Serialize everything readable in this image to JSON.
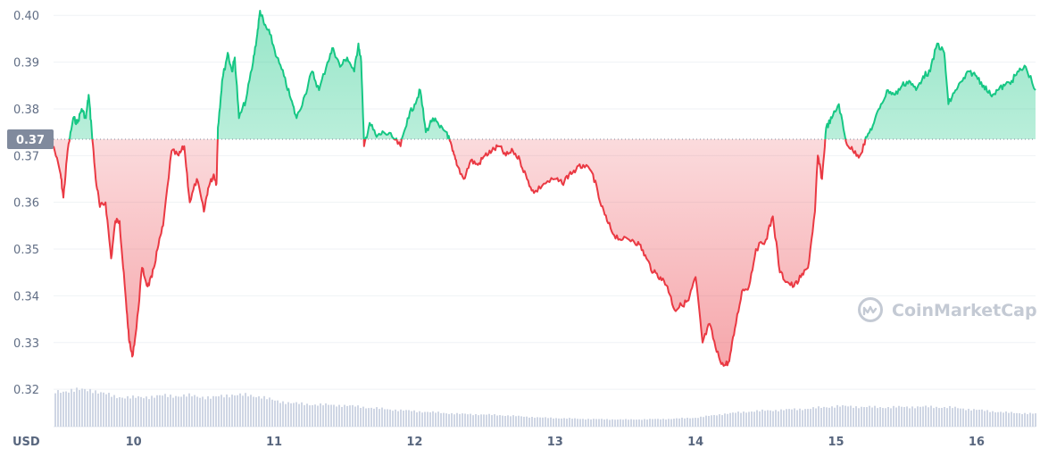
{
  "chart_data": {
    "type": "area",
    "unit_label": "USD",
    "reference_value": 0.3735,
    "reference_label": "0.37",
    "ylim": [
      0.312,
      0.401
    ],
    "y_ticks": [
      0.32,
      0.33,
      0.34,
      0.35,
      0.36,
      0.37,
      0.38,
      0.39,
      0.4
    ],
    "y_tick_labels": [
      "0.32",
      "0.33",
      "0.34",
      "0.35",
      "0.36",
      "0.37",
      "0.38",
      "0.39",
      "0.40"
    ],
    "x_ticks": [
      10,
      11,
      12,
      13,
      14,
      15,
      16
    ],
    "x_tick_labels": [
      "10",
      "11",
      "12",
      "13",
      "14",
      "15",
      "16"
    ],
    "xlim": [
      9.43,
      16.42
    ],
    "colors": {
      "up": "#16c784",
      "down": "#ea3943",
      "volume": "#cfd6e4",
      "grid": "#eff2f5"
    },
    "series": [
      {
        "values": [
          [
            9.43,
            0.372
          ],
          [
            9.48,
            0.366
          ],
          [
            9.5,
            0.361
          ],
          [
            9.53,
            0.371
          ],
          [
            9.57,
            0.378
          ],
          [
            9.6,
            0.377
          ],
          [
            9.63,
            0.38
          ],
          [
            9.66,
            0.378
          ],
          [
            9.68,
            0.383
          ],
          [
            9.7,
            0.376
          ],
          [
            9.73,
            0.365
          ],
          [
            9.76,
            0.359
          ],
          [
            9.8,
            0.36
          ],
          [
            9.84,
            0.348
          ],
          [
            9.87,
            0.356
          ],
          [
            9.9,
            0.356
          ],
          [
            9.92,
            0.348
          ],
          [
            9.95,
            0.337
          ],
          [
            9.97,
            0.33
          ],
          [
            9.99,
            0.327
          ],
          [
            10.02,
            0.333
          ],
          [
            10.06,
            0.346
          ],
          [
            10.1,
            0.342
          ],
          [
            10.13,
            0.344
          ],
          [
            10.17,
            0.35
          ],
          [
            10.21,
            0.355
          ],
          [
            10.27,
            0.371
          ],
          [
            10.32,
            0.37
          ],
          [
            10.36,
            0.372
          ],
          [
            10.4,
            0.36
          ],
          [
            10.45,
            0.365
          ],
          [
            10.5,
            0.358
          ],
          [
            10.53,
            0.363
          ],
          [
            10.57,
            0.366
          ],
          [
            10.59,
            0.364
          ],
          [
            10.6,
            0.376
          ],
          [
            10.63,
            0.386
          ],
          [
            10.67,
            0.392
          ],
          [
            10.7,
            0.388
          ],
          [
            10.72,
            0.391
          ],
          [
            10.75,
            0.378
          ],
          [
            10.8,
            0.382
          ],
          [
            10.85,
            0.39
          ],
          [
            10.88,
            0.396
          ],
          [
            10.9,
            0.401
          ],
          [
            10.93,
            0.398
          ],
          [
            10.97,
            0.396
          ],
          [
            11.02,
            0.391
          ],
          [
            11.07,
            0.387
          ],
          [
            11.12,
            0.382
          ],
          [
            11.16,
            0.378
          ],
          [
            11.22,
            0.383
          ],
          [
            11.27,
            0.388
          ],
          [
            11.32,
            0.384
          ],
          [
            11.38,
            0.39
          ],
          [
            11.42,
            0.393
          ],
          [
            11.47,
            0.389
          ],
          [
            11.52,
            0.391
          ],
          [
            11.57,
            0.388
          ],
          [
            11.6,
            0.394
          ],
          [
            11.62,
            0.39
          ],
          [
            11.64,
            0.372
          ],
          [
            11.68,
            0.377
          ],
          [
            11.73,
            0.374
          ],
          [
            11.78,
            0.375
          ],
          [
            11.84,
            0.374
          ],
          [
            11.9,
            0.372
          ],
          [
            11.95,
            0.378
          ],
          [
            12.0,
            0.381
          ],
          [
            12.04,
            0.384
          ],
          [
            12.08,
            0.375
          ],
          [
            12.13,
            0.378
          ],
          [
            12.18,
            0.376
          ],
          [
            12.23,
            0.375
          ],
          [
            12.27,
            0.371
          ],
          [
            12.3,
            0.368
          ],
          [
            12.35,
            0.365
          ],
          [
            12.4,
            0.369
          ],
          [
            12.45,
            0.368
          ],
          [
            12.5,
            0.37
          ],
          [
            12.55,
            0.371
          ],
          [
            12.6,
            0.372
          ],
          [
            12.65,
            0.37
          ],
          [
            12.7,
            0.371
          ],
          [
            12.75,
            0.369
          ],
          [
            12.8,
            0.365
          ],
          [
            12.85,
            0.362
          ],
          [
            12.92,
            0.364
          ],
          [
            13.0,
            0.365
          ],
          [
            13.05,
            0.364
          ],
          [
            13.1,
            0.366
          ],
          [
            13.15,
            0.367
          ],
          [
            13.2,
            0.368
          ],
          [
            13.27,
            0.366
          ],
          [
            13.32,
            0.36
          ],
          [
            13.37,
            0.356
          ],
          [
            13.42,
            0.353
          ],
          [
            13.48,
            0.352
          ],
          [
            13.55,
            0.352
          ],
          [
            13.6,
            0.351
          ],
          [
            13.65,
            0.348
          ],
          [
            13.7,
            0.345
          ],
          [
            13.75,
            0.344
          ],
          [
            13.8,
            0.342
          ],
          [
            13.85,
            0.337
          ],
          [
            13.9,
            0.338
          ],
          [
            13.95,
            0.339
          ],
          [
            14.0,
            0.344
          ],
          [
            14.05,
            0.33
          ],
          [
            14.1,
            0.334
          ],
          [
            14.15,
            0.328
          ],
          [
            14.2,
            0.325
          ],
          [
            14.24,
            0.326
          ],
          [
            14.28,
            0.333
          ],
          [
            14.33,
            0.341
          ],
          [
            14.38,
            0.342
          ],
          [
            14.43,
            0.35
          ],
          [
            14.5,
            0.352
          ],
          [
            14.55,
            0.357
          ],
          [
            14.6,
            0.345
          ],
          [
            14.65,
            0.343
          ],
          [
            14.7,
            0.342
          ],
          [
            14.75,
            0.344
          ],
          [
            14.8,
            0.346
          ],
          [
            14.85,
            0.358
          ],
          [
            14.87,
            0.37
          ],
          [
            14.9,
            0.365
          ],
          [
            14.93,
            0.376
          ],
          [
            14.97,
            0.378
          ],
          [
            15.02,
            0.381
          ],
          [
            15.07,
            0.373
          ],
          [
            15.12,
            0.371
          ],
          [
            15.17,
            0.37
          ],
          [
            15.22,
            0.374
          ],
          [
            15.27,
            0.377
          ],
          [
            15.32,
            0.381
          ],
          [
            15.37,
            0.384
          ],
          [
            15.42,
            0.383
          ],
          [
            15.47,
            0.385
          ],
          [
            15.52,
            0.386
          ],
          [
            15.57,
            0.384
          ],
          [
            15.62,
            0.387
          ],
          [
            15.67,
            0.388
          ],
          [
            15.72,
            0.394
          ],
          [
            15.77,
            0.392
          ],
          [
            15.8,
            0.381
          ],
          [
            15.85,
            0.384
          ],
          [
            15.9,
            0.386
          ],
          [
            15.95,
            0.388
          ],
          [
            16.0,
            0.387
          ],
          [
            16.05,
            0.385
          ],
          [
            16.1,
            0.383
          ],
          [
            16.15,
            0.384
          ],
          [
            16.2,
            0.385
          ],
          [
            16.25,
            0.386
          ],
          [
            16.3,
            0.388
          ],
          [
            16.35,
            0.389
          ],
          [
            16.42,
            0.384
          ]
        ]
      }
    ],
    "volume_relative": [
      [
        9.43,
        0.53
      ],
      [
        9.55,
        0.57
      ],
      [
        9.7,
        0.57
      ],
      [
        9.85,
        0.47
      ],
      [
        10.0,
        0.45
      ],
      [
        10.2,
        0.48
      ],
      [
        10.4,
        0.48
      ],
      [
        10.55,
        0.45
      ],
      [
        10.7,
        0.5
      ],
      [
        10.9,
        0.47
      ],
      [
        11.0,
        0.4
      ],
      [
        11.2,
        0.35
      ],
      [
        11.5,
        0.33
      ],
      [
        11.8,
        0.27
      ],
      [
        12.0,
        0.24
      ],
      [
        12.3,
        0.2
      ],
      [
        12.6,
        0.18
      ],
      [
        12.9,
        0.14
      ],
      [
        13.2,
        0.12
      ],
      [
        13.5,
        0.11
      ],
      [
        13.8,
        0.12
      ],
      [
        14.0,
        0.14
      ],
      [
        14.2,
        0.2
      ],
      [
        14.4,
        0.24
      ],
      [
        14.6,
        0.26
      ],
      [
        14.8,
        0.28
      ],
      [
        15.0,
        0.32
      ],
      [
        15.3,
        0.3
      ],
      [
        15.6,
        0.31
      ],
      [
        15.8,
        0.3
      ],
      [
        16.0,
        0.26
      ],
      [
        16.2,
        0.22
      ],
      [
        16.42,
        0.2
      ]
    ]
  },
  "price_tag": {
    "text": "0.37"
  },
  "watermark": {
    "text": "CoinMarketCap"
  },
  "axis": {
    "unit": "USD"
  }
}
